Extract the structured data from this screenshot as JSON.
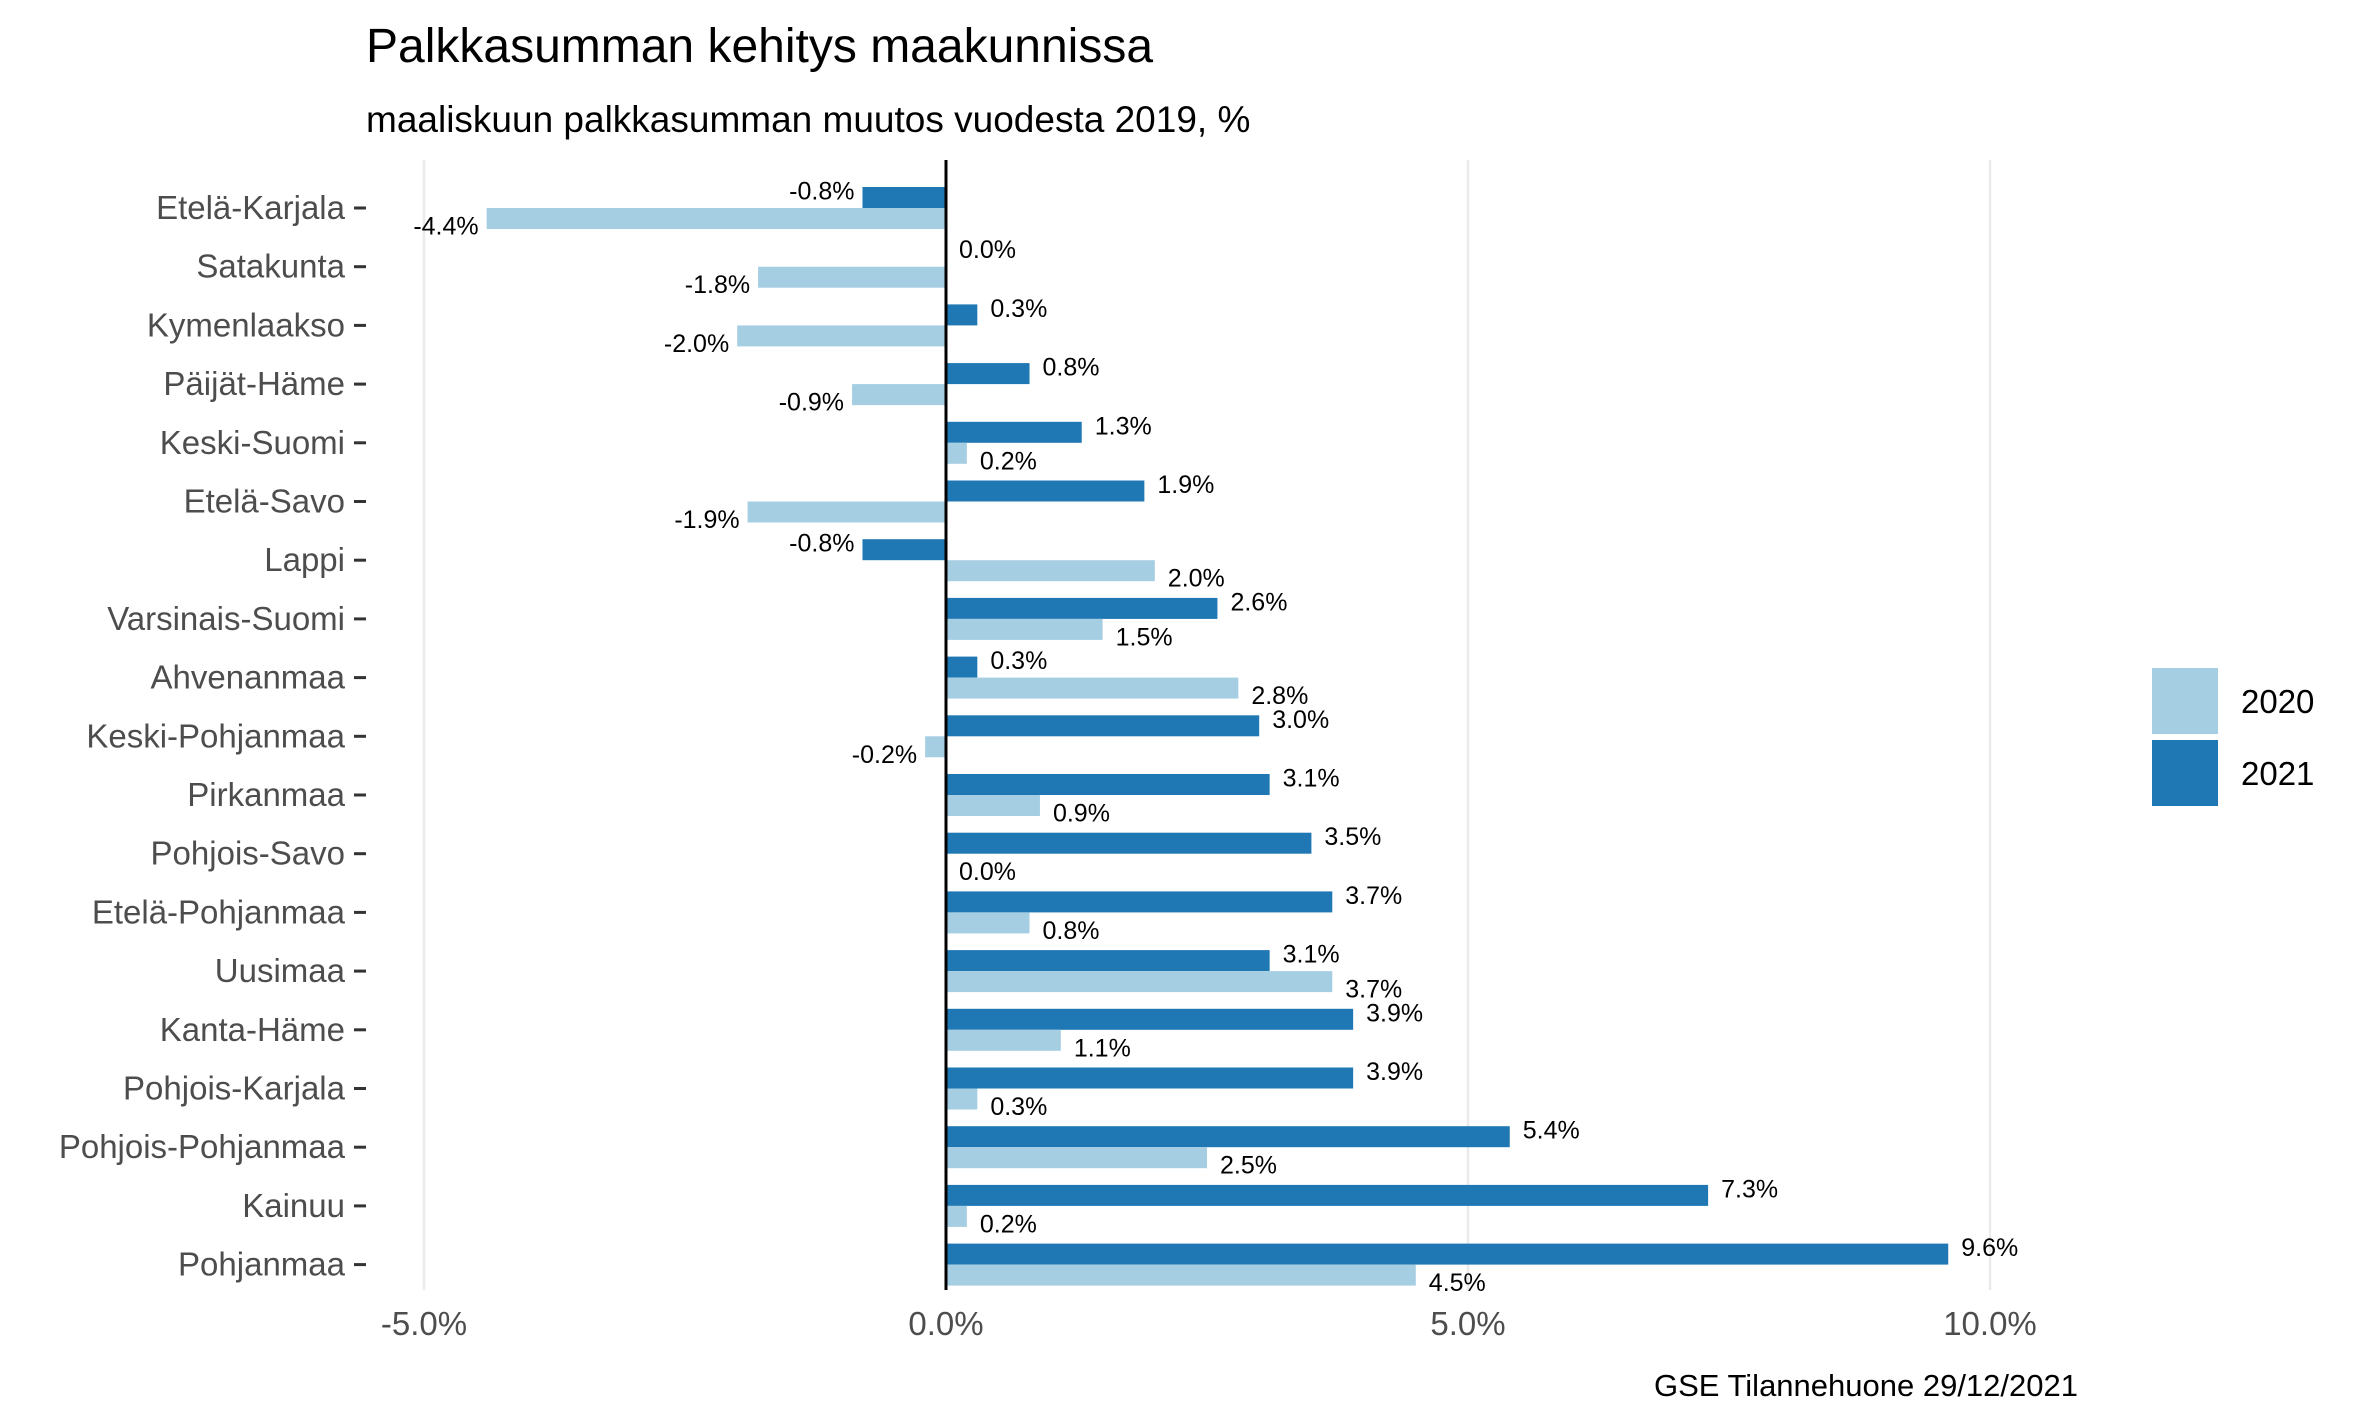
{
  "chart_data": {
    "type": "bar",
    "orientation": "horizontal",
    "title": "Palkkasumman kehitys maakunnissa",
    "subtitle": "maaliskuun palkkasumman muutos vuodesta 2019, %",
    "caption": "GSE Tilannehuone 29/12/2021",
    "xlabel": "",
    "ylabel": "",
    "xlim": [
      -5.5,
      12.0
    ],
    "x_ticks": [
      -5,
      0,
      5,
      10
    ],
    "x_tick_labels": [
      "-5.0%",
      "0.0%",
      "5.0%",
      "10.0%"
    ],
    "grid": true,
    "legend_position": "right",
    "categories": [
      "Etelä-Karjala",
      "Satakunta",
      "Kymenlaakso",
      "Päijät-Häme",
      "Keski-Suomi",
      "Etelä-Savo",
      "Lappi",
      "Varsinais-Suomi",
      "Ahvenanmaa",
      "Keski-Pohjanmaa",
      "Pirkanmaa",
      "Pohjois-Savo",
      "Etelä-Pohjanmaa",
      "Uusimaa",
      "Kanta-Häme",
      "Pohjois-Karjala",
      "Pohjois-Pohjanmaa",
      "Kainuu",
      "Pohjanmaa"
    ],
    "series": [
      {
        "name": "2020",
        "color": "#a6cee3",
        "values": [
          -4.4,
          -1.8,
          -2.0,
          -0.9,
          0.2,
          -1.9,
          2.0,
          1.5,
          2.8,
          -0.2,
          0.9,
          0.0,
          0.8,
          3.7,
          1.1,
          0.3,
          2.5,
          0.2,
          4.5
        ],
        "labels": [
          "-4.4%",
          "-1.8%",
          "-2.0%",
          "-0.9%",
          "0.2%",
          "-1.9%",
          "2.0%",
          "1.5%",
          "2.8%",
          "-0.2%",
          "0.9%",
          "0.0%",
          "0.8%",
          "3.7%",
          "1.1%",
          "0.3%",
          "2.5%",
          "0.2%",
          "4.5%"
        ]
      },
      {
        "name": "2021",
        "color": "#1f78b4",
        "values": [
          -0.8,
          0.0,
          0.3,
          0.8,
          1.3,
          1.9,
          -0.8,
          2.6,
          0.3,
          3.0,
          3.1,
          3.5,
          3.7,
          3.1,
          3.9,
          3.9,
          5.4,
          7.3,
          9.6
        ],
        "labels": [
          "-0.8%",
          "0.0%",
          "0.3%",
          "0.8%",
          "1.3%",
          "1.9%",
          "-0.8%",
          "2.6%",
          "0.3%",
          "3.0%",
          "3.1%",
          "3.5%",
          "3.7%",
          "3.1%",
          "3.9%",
          "3.9%",
          "5.4%",
          "7.3%",
          "9.6%"
        ]
      }
    ]
  }
}
